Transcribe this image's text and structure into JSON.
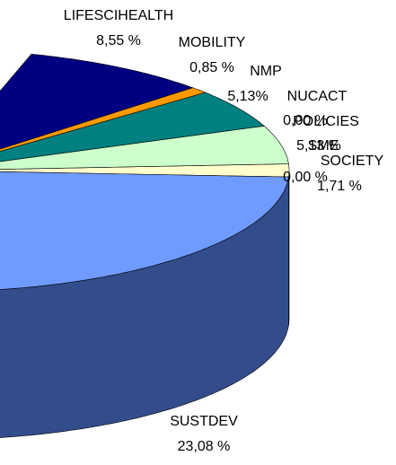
{
  "chart_data": {
    "type": "pie",
    "categories": [
      "SOCIETY",
      "SME",
      "POLICIES",
      "NUCACT",
      "NMP",
      "MOBILITY",
      "LIFESCIHEALTH",
      "SUSTDEV"
    ],
    "values": [
      1.71,
      0.0,
      5.13,
      0.0,
      5.13,
      0.85,
      8.55,
      23.08
    ],
    "value_labels": [
      "1,71 %",
      "0,00 %",
      "5,13 %",
      "0,00 %",
      "5,13%",
      "0,85 %",
      "8,55 %",
      "23,08 %"
    ],
    "colors": [
      "#ffffcc",
      null,
      "#ccffcc",
      null,
      "#008080",
      "#ff9900",
      "#000080",
      "#6f9bff"
    ],
    "side_colors": [
      "#b3b38f",
      null,
      "#8fb38f",
      null,
      "#005a5a",
      "#b36b00",
      "#00005a",
      "#334d8c"
    ]
  }
}
